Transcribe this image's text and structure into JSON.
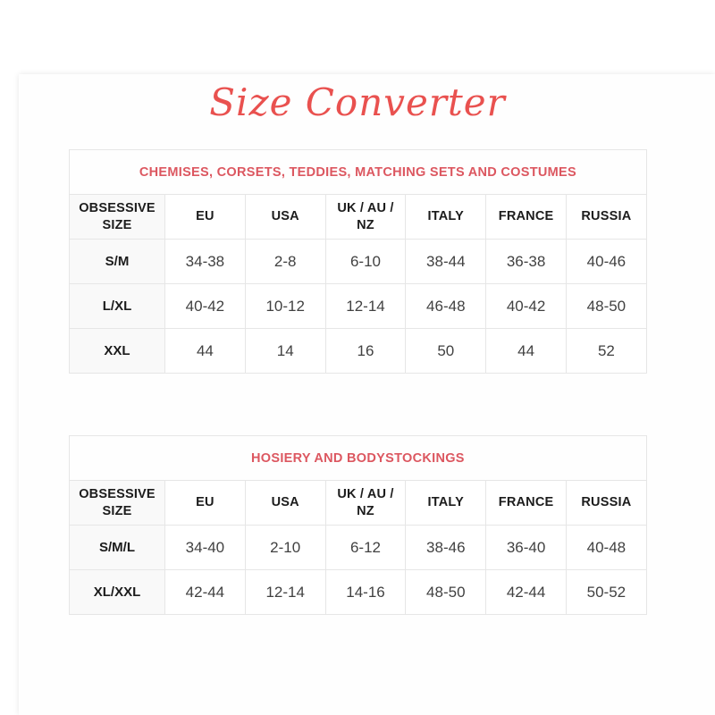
{
  "page": {
    "title": "Size Converter"
  },
  "colors": {
    "accent": "#e9514f",
    "header_text": "#dc5760",
    "heading_text": "#1c1c1c",
    "text": "#414141",
    "border": "#e6e6e6",
    "first_col_bg": "#f9f9f9"
  },
  "tables": [
    {
      "section_title": "CHEMISES, CORSETS, TEDDIES, MATCHING SETS AND COSTUMES",
      "columns": [
        "OBSESSIVE SIZE",
        "EU",
        "USA",
        "UK / AU / NZ",
        "ITALY",
        "FRANCE",
        "RUSSIA"
      ],
      "rows": [
        [
          "S/M",
          "34-38",
          "2-8",
          "6-10",
          "38-44",
          "36-38",
          "40-46"
        ],
        [
          "L/XL",
          "40-42",
          "10-12",
          "12-14",
          "46-48",
          "40-42",
          "48-50"
        ],
        [
          "XXL",
          "44",
          "14",
          "16",
          "50",
          "44",
          "52"
        ]
      ]
    },
    {
      "section_title": "HOSIERY AND BODYSTOCKINGS",
      "columns": [
        "OBSESSIVE SIZE",
        "EU",
        "USA",
        "UK / AU / NZ",
        "ITALY",
        "FRANCE",
        "RUSSIA"
      ],
      "rows": [
        [
          "S/M/L",
          "34-40",
          "2-10",
          "6-12",
          "38-46",
          "36-40",
          "40-48"
        ],
        [
          "XL/XXL",
          "42-44",
          "12-14",
          "14-16",
          "48-50",
          "42-44",
          "50-52"
        ]
      ]
    }
  ]
}
